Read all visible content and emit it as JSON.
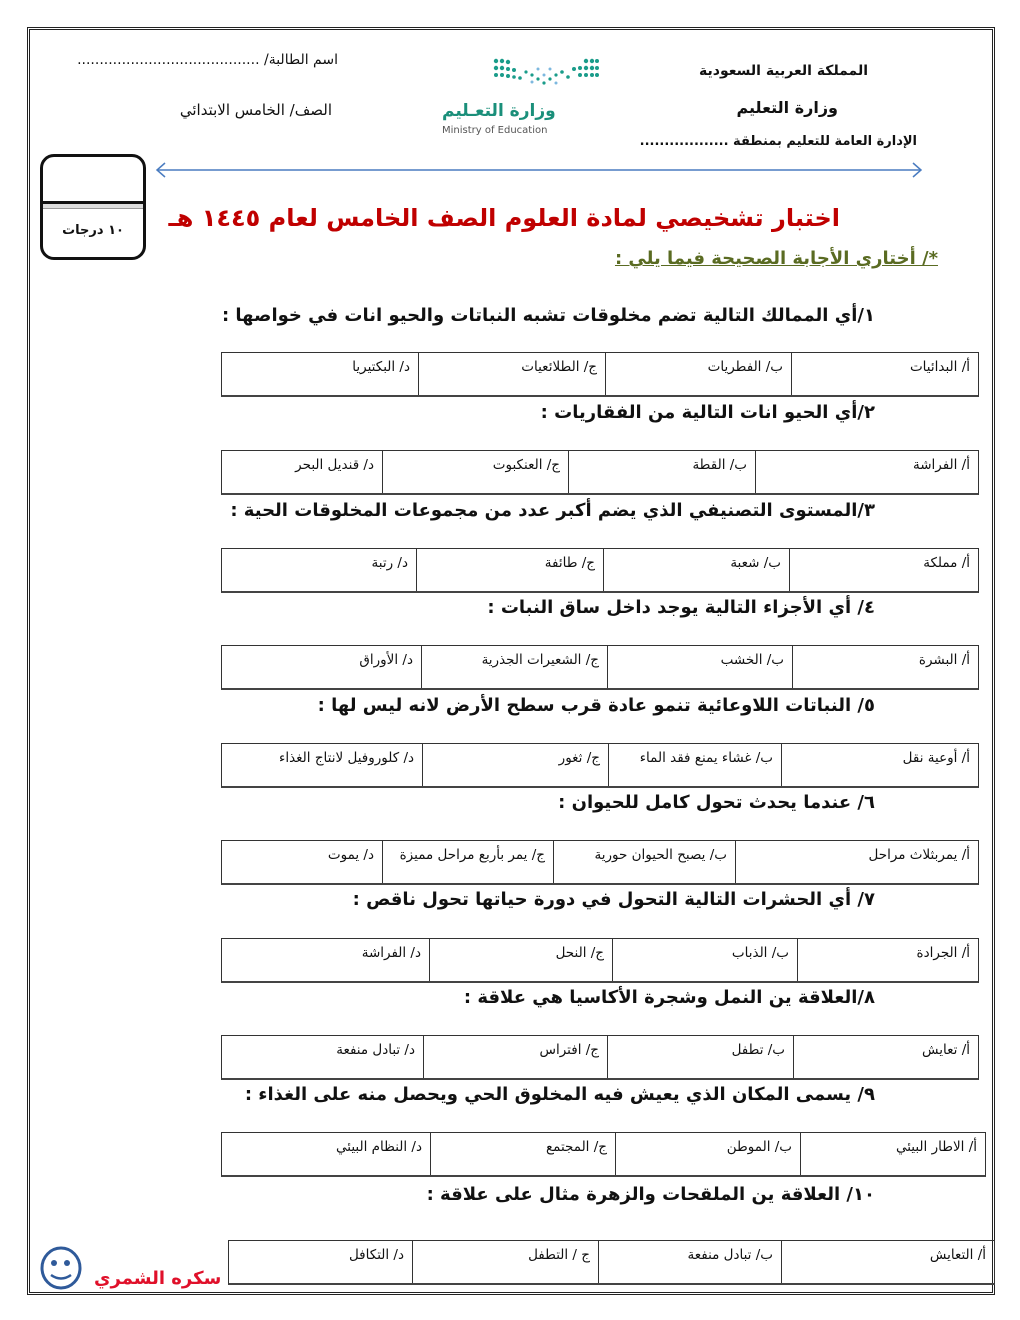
{
  "header": {
    "country": "المملكة العربية السعودية",
    "ministry": "وزارة التعليم",
    "directorate": "الإدارة العامة للتعليم بمنطقة ..................",
    "student_name": "اسم الطالبة/ .........................................",
    "grade": "الصف/ الخامس الابتدائي",
    "logo_ar": "وزارة التعـليم",
    "logo_en": "Ministry of Education",
    "logo_color": "#1a8f7a"
  },
  "score_box": {
    "label": "١٠ درجات"
  },
  "title": "اختبار تشخيصي لمادة العلوم الصف الخامس  لعام   ١٤٤٥ هـ",
  "title_color": "#c00000",
  "instruction": "*/ أختاري  الأجابة الصحيحة فيما يلي :",
  "questions": [
    {
      "text": "١/أي الممالك التالية تضم مخلوقات تشبه النباتات والحيو انات في خواصها :",
      "options": [
        "أ/ البدائيات",
        "ب/ الفطريات",
        "ج/ الطلائعيات",
        "د/ البكتيريا"
      ]
    },
    {
      "text": "٢/أي الحيو انات التالية من الفقاريات :",
      "options": [
        "أ/ الفراشة",
        "ب/ القطة",
        "ج/ العنكبوت",
        "د/ قنديل البحر"
      ]
    },
    {
      "text": "٣/المستوى التصنيفي الذي يضم أكبر عدد من مجموعات المخلوقات الحية :",
      "options": [
        "أ/ مملكة",
        "ب/ شعبة",
        "ج/ طائفة",
        "د/ رتبة"
      ]
    },
    {
      "text": "٤/ أي الأجزاء التالية يوجد داخل ساق النبات :",
      "options": [
        "أ/ البشرة",
        "ب/ الخشب",
        "ج/ الشعيرات الجذرية",
        "د/ الأوراق"
      ]
    },
    {
      "text": "٥/  النباتات اللاوعائية تنمو عادة قرب سطح الأرض لانه ليس لها :",
      "options": [
        "أ/ أوعية نقل",
        "ب/ غشاء يمنع فقد الماء",
        "ج/ ثغور",
        "د/ كلوروفيل لانتاج الغذاء"
      ]
    },
    {
      "text": "٦/  عندما يحدث تحول كامل للحيوان :",
      "options": [
        "أ/  يمربثلاث مراحل",
        "ب/ يصبح الحيوان حورية",
        "ج/  يمر بأربع مراحل مميزة",
        "د/ يموت"
      ]
    },
    {
      "text": "٧/ أي الحشرات التالية التحول في دورة حياتها تحول ناقص :",
      "options": [
        "أ/ الجرادة",
        "ب/ الذباب",
        "ج/ النحل",
        "د/ الفراشة"
      ]
    },
    {
      "text": "٨/العلاقة ين النمل وشجرة الأكاسيا هي علاقة :",
      "options": [
        "أ/ تعايش",
        "ب/ تطفل",
        "ج/ افتراس",
        "د/ تبادل منفعة"
      ]
    },
    {
      "text": "٩/ يسمى المكان الذي يعيش فيه المخلوق الحي ويحصل منه على الغذاء :",
      "options": [
        "أ/ الاطار البيئي",
        "ب/ الموطن",
        "ج/ المجتمع",
        "د/ النظام البيئي"
      ]
    },
    {
      "text": "١٠/ العلاقة ين الملقحات والزهرة مثال على علاقة :",
      "options": [
        "أ/  التعايش",
        "ب/ تبادل منفعة",
        "ج / التطفل",
        "د/ التكافل"
      ]
    }
  ],
  "signature": "سكره الشمري",
  "signature_color": "#e0102a"
}
